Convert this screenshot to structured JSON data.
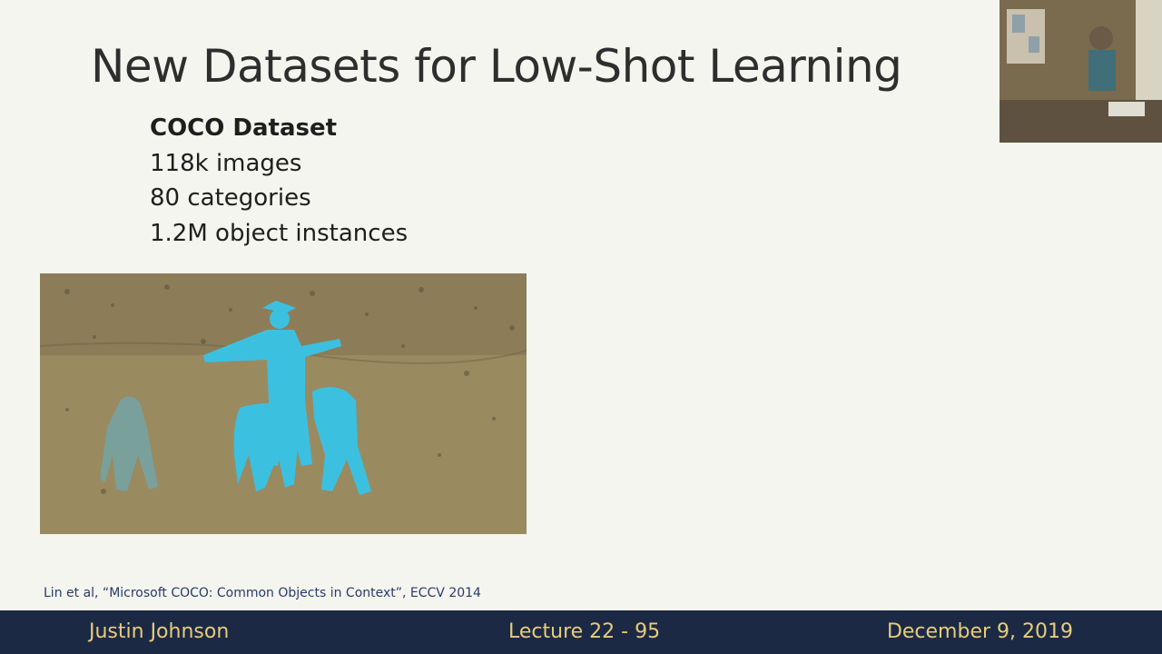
{
  "slide": {
    "title": "New Datasets for Low-Shot Learning",
    "dataset": {
      "heading": "COCO Dataset",
      "stats": [
        "118k images",
        "80 categories",
        "1.2M object instances"
      ]
    },
    "citation": "Lin et al, “Microsoft COCO: Common Objects in Context”, ECCV 2014"
  },
  "footer": {
    "author": "Justin Johnson",
    "lecture": "Lecture 22 - 95",
    "date": "December 9, 2019"
  },
  "colors": {
    "background": "#f4f5ef",
    "footer_bg": "#1c2944",
    "footer_text": "#e7cd7a",
    "segmentation_mask": "#3cc0e0",
    "photo_ground": "#9a8a60"
  }
}
